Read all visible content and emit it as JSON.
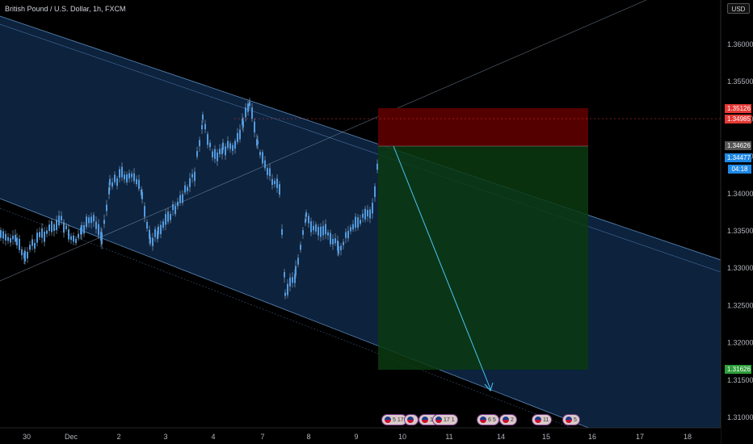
{
  "symbol": {
    "title": "British Pound / U.S. Dollar, 1h, FXCM"
  },
  "currency": "USD",
  "y_axis": {
    "ticks": [
      "1.36000",
      "1.35500",
      "1.35000",
      "1.34500",
      "1.34000",
      "1.33500",
      "1.33000",
      "1.32500",
      "1.32000",
      "1.31500",
      "1.31000"
    ]
  },
  "x_axis": {
    "ticks": [
      "30",
      "Dec",
      "2",
      "3",
      "4",
      "7",
      "8",
      "9",
      "10",
      "11",
      "14",
      "15",
      "16",
      "17",
      "18"
    ]
  },
  "price_badges": {
    "stop_price": "1.35126",
    "alert_price": "1.34985",
    "entry_price": "1.34626",
    "last_price": "1.34477",
    "countdown": "04:18",
    "target_price": "1.31626"
  },
  "events": [
    {
      "label": "5 17"
    },
    {
      "label": ""
    },
    {
      "label": "13"
    },
    {
      "label": "17 1"
    },
    {
      "label": "6 5"
    },
    {
      "label": "2"
    },
    {
      "label": "11"
    },
    {
      "label": "5"
    }
  ],
  "colors": {
    "background": "#000000",
    "channel": "#1565c0",
    "stop_zone": "#8b0000",
    "target_zone": "#0f5a12",
    "candle": "#3a8fe0",
    "accent_blue": "#2196f3",
    "red": "#e53935",
    "green": "#43a047"
  }
}
